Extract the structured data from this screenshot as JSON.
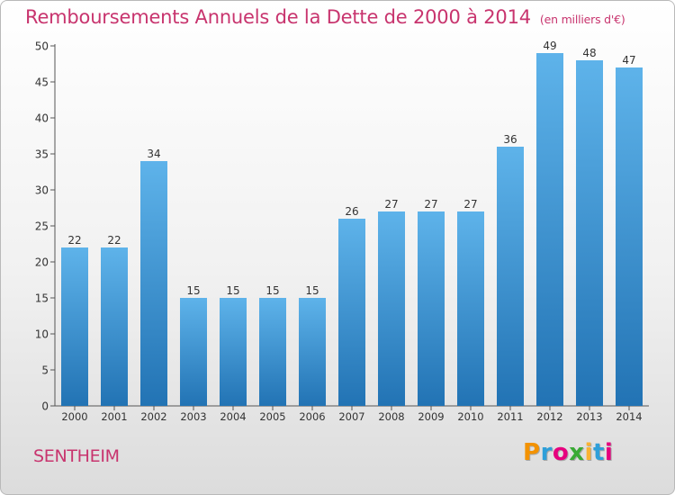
{
  "header": {
    "title": "Remboursements Annuels de la Dette de 2000 à 2014",
    "subtitle": "(en milliers d'€)"
  },
  "footer": {
    "commune": "SENTHEIM",
    "logo": "Proxiti"
  },
  "colors": {
    "accent": "#c8346e",
    "bar_top": "#5eb3ea",
    "bar_bottom": "#2273b4"
  },
  "chart_data": {
    "type": "bar",
    "categories": [
      "2000",
      "2001",
      "2002",
      "2003",
      "2004",
      "2005",
      "2006",
      "2007",
      "2008",
      "2009",
      "2010",
      "2011",
      "2012",
      "2013",
      "2014"
    ],
    "values": [
      22,
      22,
      34,
      15,
      15,
      15,
      15,
      26,
      27,
      27,
      27,
      36,
      49,
      48,
      47
    ],
    "ylim": [
      0,
      50
    ],
    "yticks": [
      0,
      5,
      10,
      15,
      20,
      25,
      30,
      35,
      40,
      45,
      50
    ],
    "grid": false,
    "title": "Remboursements Annuels de la Dette de 2000 à 2014",
    "xlabel": "",
    "ylabel": ""
  }
}
